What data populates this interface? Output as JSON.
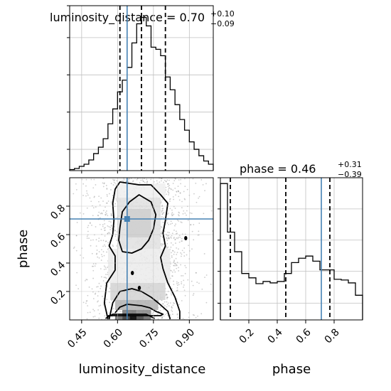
{
  "chart_data": {
    "type": "corner",
    "parameters": [
      "luminosity_distance",
      "phase"
    ],
    "injected_values": {
      "luminosity_distance": 0.64,
      "phase": 0.71
    },
    "colors": {
      "truth": "#4682b4",
      "histogram": "#000000",
      "grid": "#c0c0c0",
      "samples": "#909090"
    },
    "grid": true,
    "luminosity_distance": {
      "title_main": "luminosity_distance = 0.70",
      "title_sup": "+0.10",
      "title_sub": "−0.09",
      "xlabel": "luminosity_distance",
      "xlim": [
        0.4,
        1.0
      ],
      "ticks": [
        0.45,
        0.6,
        0.75,
        0.9
      ],
      "tick_labels": [
        "0.45",
        "0.60",
        "0.75",
        "0.90"
      ],
      "quantiles": [
        0.61,
        0.7,
        0.8
      ],
      "bin_edges": [
        0.4,
        0.42,
        0.44,
        0.46,
        0.48,
        0.5,
        0.52,
        0.54,
        0.56,
        0.58,
        0.6,
        0.62,
        0.64,
        0.66,
        0.68,
        0.7,
        0.72,
        0.74,
        0.76,
        0.78,
        0.8,
        0.82,
        0.84,
        0.86,
        0.88,
        0.9,
        0.92,
        0.94,
        0.96,
        0.98,
        1.0
      ],
      "counts": [
        1,
        2,
        4,
        6,
        10,
        16,
        22,
        30,
        44,
        58,
        74,
        85,
        97,
        120,
        138,
        144,
        136,
        116,
        114,
        108,
        88,
        76,
        62,
        48,
        38,
        27,
        20,
        14,
        9,
        6
      ],
      "y_max_count": 155
    },
    "phase": {
      "title_main": "phase = 0.46",
      "title_sup": "+0.31",
      "title_sub": "−0.39",
      "xlabel": "phase",
      "ylabel": "phase",
      "xlim": [
        0.0,
        1.0
      ],
      "ticks": [
        0.2,
        0.4,
        0.6,
        0.8
      ],
      "tick_labels": [
        "0.2",
        "0.4",
        "0.6",
        "0.8"
      ],
      "quantiles": [
        0.07,
        0.46,
        0.77
      ],
      "bin_edges": [
        0.0,
        0.05,
        0.1,
        0.15,
        0.2,
        0.25,
        0.3,
        0.35,
        0.4,
        0.45,
        0.5,
        0.55,
        0.6,
        0.65,
        0.7,
        0.75,
        0.8,
        0.85,
        0.9,
        0.95,
        1.0
      ],
      "counts": [
        188,
        121,
        94,
        64,
        58,
        50,
        53,
        51,
        53,
        64,
        79,
        85,
        88,
        81,
        69,
        69,
        56,
        55,
        51,
        34
      ],
      "y_max_count": 196
    },
    "joint": {
      "xlim": [
        0.4,
        1.0
      ],
      "ylim": [
        0.0,
        1.0
      ],
      "contours": [
        [
          [
            0.55,
            0.01
          ],
          [
            0.58,
            0.04
          ],
          [
            0.72,
            0.04
          ],
          [
            0.755,
            0.01
          ]
        ],
        [
          [
            0.59,
            0.05
          ],
          [
            0.61,
            0.09
          ],
          [
            0.64,
            0.11
          ],
          [
            0.7,
            0.1
          ],
          [
            0.735,
            0.085
          ],
          [
            0.76,
            0.06
          ],
          [
            0.79,
            0.04
          ],
          [
            0.78,
            0.03
          ],
          [
            0.56,
            0.03
          ]
        ],
        [
          [
            0.565,
            0.005
          ],
          [
            0.58,
            0.12
          ],
          [
            0.61,
            0.2
          ],
          [
            0.66,
            0.22
          ],
          [
            0.7,
            0.2
          ],
          [
            0.74,
            0.16
          ],
          [
            0.77,
            0.12
          ],
          [
            0.81,
            0.06
          ],
          [
            0.82,
            0.005
          ]
        ],
        [
          [
            0.56,
            0.005
          ],
          [
            0.545,
            0.12
          ],
          [
            0.555,
            0.26
          ],
          [
            0.59,
            0.35
          ],
          [
            0.59,
            0.45
          ],
          [
            0.565,
            0.52
          ],
          [
            0.58,
            0.6
          ],
          [
            0.585,
            0.7
          ],
          [
            0.58,
            0.82
          ],
          [
            0.59,
            0.92
          ],
          [
            0.61,
            0.97
          ],
          [
            0.69,
            0.95
          ],
          [
            0.74,
            0.95
          ],
          [
            0.78,
            0.88
          ],
          [
            0.81,
            0.82
          ],
          [
            0.8,
            0.7
          ],
          [
            0.79,
            0.61
          ],
          [
            0.8,
            0.52
          ],
          [
            0.78,
            0.44
          ],
          [
            0.79,
            0.36
          ],
          [
            0.81,
            0.26
          ],
          [
            0.84,
            0.16
          ],
          [
            0.86,
            0.06
          ],
          [
            0.86,
            0.005
          ]
        ],
        [
          [
            0.62,
            0.48
          ],
          [
            0.605,
            0.56
          ],
          [
            0.61,
            0.65
          ],
          [
            0.62,
            0.76
          ],
          [
            0.65,
            0.83
          ],
          [
            0.69,
            0.88
          ],
          [
            0.74,
            0.83
          ],
          [
            0.76,
            0.74
          ],
          [
            0.75,
            0.64
          ],
          [
            0.73,
            0.56
          ],
          [
            0.7,
            0.5
          ],
          [
            0.66,
            0.47
          ],
          [
            0.62,
            0.48
          ]
        ]
      ],
      "density_cells": [
        {
          "x0": 0.65,
          "x1": 0.68,
          "y0": 0.0,
          "y1": 0.03,
          "shade": "#000000"
        },
        {
          "x0": 0.62,
          "x1": 0.65,
          "y0": 0.0,
          "y1": 0.03,
          "shade": "#3a3a3a"
        },
        {
          "x0": 0.68,
          "x1": 0.71,
          "y0": 0.0,
          "y1": 0.03,
          "shade": "#454545"
        },
        {
          "x0": 0.59,
          "x1": 0.62,
          "y0": 0.0,
          "y1": 0.03,
          "shade": "#6a6a6a"
        },
        {
          "x0": 0.71,
          "x1": 0.74,
          "y0": 0.0,
          "y1": 0.03,
          "shade": "#6a6a6a"
        },
        {
          "x0": 0.62,
          "x1": 0.68,
          "y0": 0.03,
          "y1": 0.07,
          "shade": "#7a7a7a"
        },
        {
          "x0": 0.68,
          "x1": 0.74,
          "y0": 0.03,
          "y1": 0.07,
          "shade": "#8a8a8a"
        },
        {
          "x0": 0.59,
          "x1": 0.77,
          "y0": 0.07,
          "y1": 0.14,
          "shade": "#b5b5b5"
        },
        {
          "x0": 0.57,
          "x1": 0.8,
          "y0": 0.14,
          "y1": 0.26,
          "shade": "#d5d5d5"
        },
        {
          "x0": 0.56,
          "x1": 0.82,
          "y0": 0.26,
          "y1": 0.5,
          "shade": "#ececec"
        },
        {
          "x0": 0.6,
          "x1": 0.78,
          "y0": 0.5,
          "y1": 0.86,
          "shade": "#e2e2e2"
        },
        {
          "x0": 0.64,
          "x1": 0.74,
          "y0": 0.58,
          "y1": 0.78,
          "shade": "#cfcfcf"
        },
        {
          "x0": 0.59,
          "x1": 0.8,
          "y0": 0.86,
          "y1": 0.96,
          "shade": "#efefef"
        }
      ],
      "markers": [
        {
          "x": 0.662,
          "y": 0.33
        },
        {
          "x": 0.691,
          "y": 0.225
        },
        {
          "x": 0.885,
          "y": 0.575
        }
      ],
      "sample_count": 1800
    }
  }
}
